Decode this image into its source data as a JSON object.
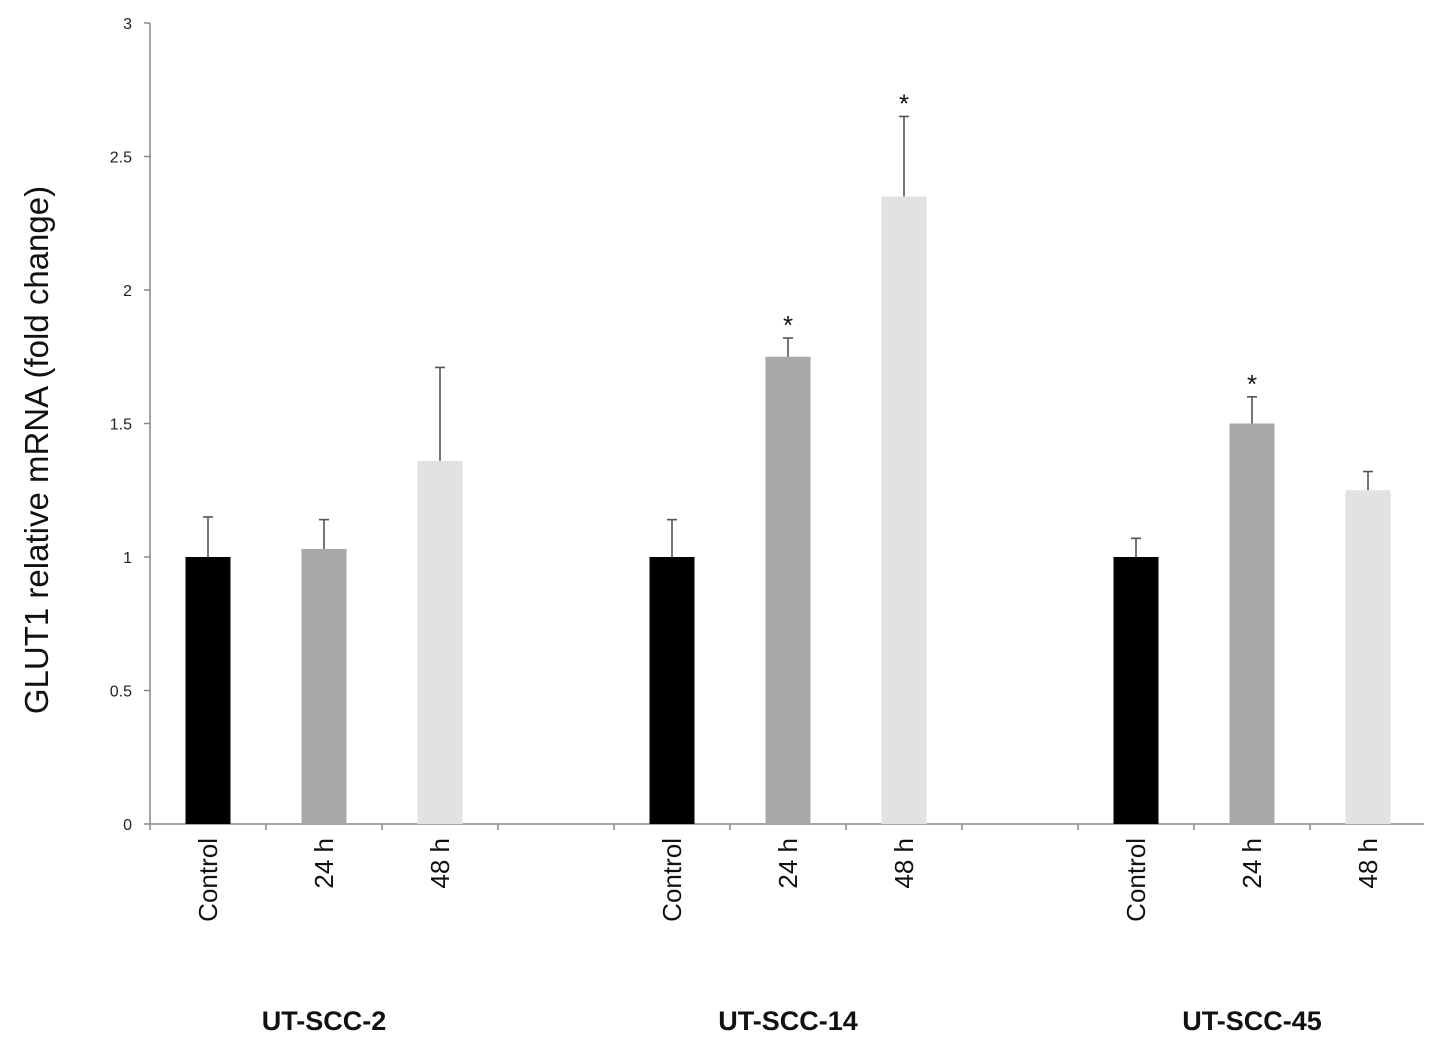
{
  "chart_data": {
    "type": "bar",
    "ylabel": "GLUT1 relative mRNA (fold change)",
    "ylim": [
      0,
      3
    ],
    "yticks": [
      "0",
      "0.5",
      "1",
      "1.5",
      "2",
      "2.5",
      "3"
    ],
    "grid": false,
    "legend": "none",
    "categories": [
      "Control",
      "24 h",
      "48 h"
    ],
    "groups": [
      {
        "name": "UT-SCC-2",
        "bars": [
          {
            "category": "Control",
            "value": 1.0,
            "error": 0.15,
            "significant": false
          },
          {
            "category": "24 h",
            "value": 1.03,
            "error": 0.11,
            "significant": false
          },
          {
            "category": "48 h",
            "value": 1.36,
            "error": 0.35,
            "significant": false
          }
        ]
      },
      {
        "name": "UT-SCC-14",
        "bars": [
          {
            "category": "Control",
            "value": 1.0,
            "error": 0.14,
            "significant": false
          },
          {
            "category": "24 h",
            "value": 1.75,
            "error": 0.07,
            "significant": true
          },
          {
            "category": "48 h",
            "value": 2.35,
            "error": 0.3,
            "significant": true
          }
        ]
      },
      {
        "name": "UT-SCC-45",
        "bars": [
          {
            "category": "Control",
            "value": 1.0,
            "error": 0.07,
            "significant": false
          },
          {
            "category": "24 h",
            "value": 1.5,
            "error": 0.1,
            "significant": true
          },
          {
            "category": "48 h",
            "value": 1.25,
            "error": 0.07,
            "significant": false
          }
        ]
      }
    ],
    "significance_marker": "*",
    "colors": {
      "Control": "#000000",
      "24 h": "#a8a8a8",
      "48 h": "#e2e2e2",
      "axis": "#888888"
    }
  }
}
